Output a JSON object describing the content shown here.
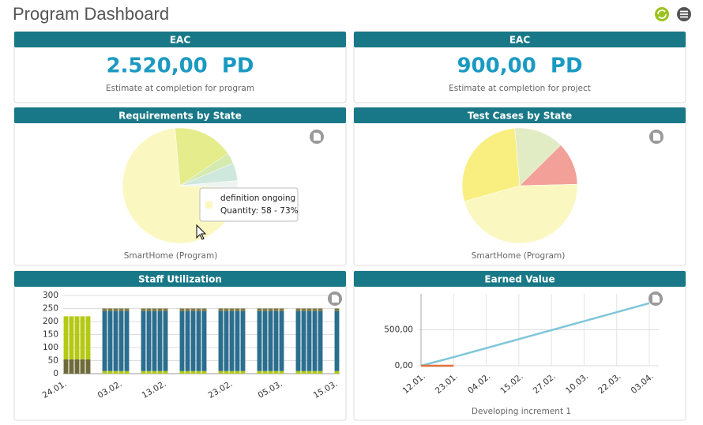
{
  "header": {
    "title": "Program Dashboard"
  },
  "eac": [
    {
      "title": "EAC",
      "value": "2.520,00  PD",
      "caption": "Estimate at completion for program"
    },
    {
      "title": "EAC",
      "value": "900,00  PD",
      "caption": "Estimate at completion for project"
    }
  ],
  "requirements": {
    "title": "Requirements by State",
    "caption": "SmartHome (Program)",
    "chart_data": {
      "type": "pie",
      "values": [
        17,
        3,
        5,
        2,
        73
      ],
      "colors": [
        "#e4ec8c",
        "#d4eab0",
        "#cfe8de",
        "#eef4f0",
        "#fbf7c0"
      ],
      "tooltip": {
        "label": "definition ongoing",
        "text": "Quantity: 58 - 73%"
      }
    }
  },
  "testcases": {
    "title": "Test Cases by State",
    "caption": "SmartHome (Program)",
    "chart_data": {
      "type": "pie",
      "values": [
        14,
        12,
        46,
        28
      ],
      "colors": [
        "#e2ecc4",
        "#f2a098",
        "#fbf7c0",
        "#f9ef80"
      ]
    }
  },
  "staff": {
    "title": "Staff Utilization",
    "chart_data": {
      "type": "bar",
      "stacked": true,
      "categories": [
        "24.01.",
        null,
        null,
        null,
        null,
        null,
        null,
        null,
        null,
        null,
        "03.02.",
        null,
        null,
        null,
        null,
        null,
        null,
        null,
        "13.02.",
        null,
        null,
        null,
        null,
        null,
        null,
        null,
        null,
        null,
        null,
        null,
        "23.02.",
        null,
        null,
        null,
        null,
        null,
        null,
        null,
        null,
        "05.03.",
        null,
        null,
        null,
        null,
        null,
        null,
        null,
        null,
        null,
        "15.03."
      ],
      "series": [
        {
          "color": "#6e6a3a",
          "values": [
            55,
            55,
            55,
            55,
            55,
            null,
            null,
            0,
            0,
            0,
            0,
            0,
            null,
            null,
            0,
            0,
            0,
            0,
            0,
            null,
            null,
            0,
            0,
            0,
            0,
            0,
            null,
            null,
            0,
            0,
            0,
            0,
            0,
            null,
            null,
            0,
            0,
            0,
            0,
            0,
            null,
            null,
            0,
            0,
            0,
            0,
            0,
            null,
            null,
            0
          ]
        },
        {
          "color": "#b4c914",
          "values": [
            165,
            165,
            165,
            165,
            165,
            null,
            null,
            10,
            10,
            10,
            10,
            10,
            null,
            null,
            10,
            10,
            10,
            10,
            10,
            null,
            null,
            10,
            10,
            10,
            10,
            10,
            null,
            null,
            10,
            10,
            10,
            10,
            10,
            null,
            null,
            10,
            10,
            10,
            10,
            10,
            null,
            null,
            10,
            10,
            10,
            10,
            10,
            null,
            null,
            10
          ]
        },
        {
          "color": "#2b6e8e",
          "values": [
            0,
            0,
            0,
            0,
            0,
            null,
            null,
            230,
            230,
            230,
            230,
            230,
            null,
            null,
            230,
            230,
            230,
            230,
            230,
            null,
            null,
            230,
            230,
            230,
            230,
            230,
            null,
            null,
            230,
            230,
            230,
            230,
            230,
            null,
            null,
            230,
            230,
            230,
            230,
            230,
            null,
            null,
            230,
            230,
            230,
            230,
            230,
            null,
            null,
            230
          ]
        },
        {
          "color": "#7d7844",
          "values": [
            0,
            0,
            0,
            0,
            0,
            null,
            null,
            10,
            10,
            10,
            10,
            10,
            null,
            null,
            10,
            10,
            10,
            10,
            10,
            null,
            null,
            10,
            10,
            10,
            10,
            10,
            null,
            null,
            10,
            10,
            10,
            10,
            10,
            null,
            null,
            10,
            10,
            10,
            10,
            10,
            null,
            null,
            10,
            10,
            10,
            10,
            10,
            null,
            null,
            10
          ]
        }
      ],
      "ylim": [
        0,
        300
      ],
      "yticks": [
        0,
        50,
        100,
        150,
        200,
        250,
        300
      ],
      "grid": true
    }
  },
  "earned": {
    "title": "Earned Value",
    "caption": "Developing increment 1",
    "chart_data": {
      "type": "line",
      "categories": [
        "12.01.",
        "23.01.",
        "04.02.",
        "15.02.",
        "27.02.",
        "10.03.",
        "22.03.",
        "03.04."
      ],
      "series": [
        {
          "color": "#7ec6db",
          "values": [
            0,
            120,
            245,
            370,
            495,
            620,
            745,
            870
          ]
        },
        {
          "color": "#e0703a",
          "values": [
            0,
            0,
            null,
            null,
            null,
            null,
            null,
            null
          ]
        }
      ],
      "ylim": [
        0,
        1000
      ],
      "yticks": [
        {
          "value": 0,
          "label": "0,00"
        },
        {
          "value": 500,
          "label": "500,00"
        }
      ],
      "grid": true
    }
  }
}
